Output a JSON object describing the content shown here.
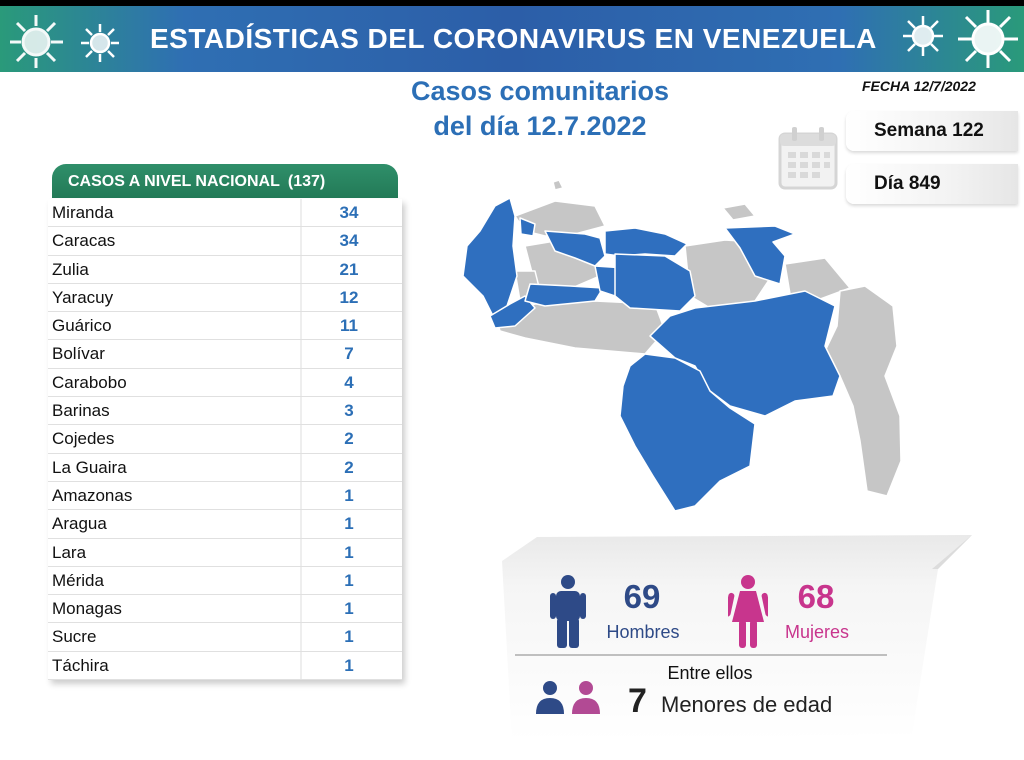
{
  "header": {
    "title": "ESTADÍSTICAS DEL CORONAVIRUS EN VENEZUELA"
  },
  "subtitle": {
    "line1": "Casos comunitarios",
    "line2": "del día 12.7.2022"
  },
  "fecha": "FECHA 12/7/2022",
  "semana": "Semana 122",
  "dia": "Día 849",
  "table": {
    "header_label": "CASOS A NIVEL NACIONAL",
    "total": "(137)",
    "rows": [
      {
        "name": "Miranda",
        "value": "34"
      },
      {
        "name": "Caracas",
        "value": "34"
      },
      {
        "name": "Zulia",
        "value": "21"
      },
      {
        "name": "Yaracuy",
        "value": "12"
      },
      {
        "name": "Guárico",
        "value": "11"
      },
      {
        "name": "Bolívar",
        "value": "7"
      },
      {
        "name": "Carabobo",
        "value": "4"
      },
      {
        "name": "Barinas",
        "value": "3"
      },
      {
        "name": "Cojedes",
        "value": "2"
      },
      {
        "name": "La Guaira",
        "value": "2"
      },
      {
        "name": "Amazonas",
        "value": "1"
      },
      {
        "name": "Aragua",
        "value": "1"
      },
      {
        "name": "Lara",
        "value": "1"
      },
      {
        "name": "Mérida",
        "value": "1"
      },
      {
        "name": "Monagas",
        "value": "1"
      },
      {
        "name": "Sucre",
        "value": "1"
      },
      {
        "name": "Táchira",
        "value": "1"
      }
    ]
  },
  "gender": {
    "men_count": "69",
    "men_label": "Hombres",
    "women_count": "68",
    "women_label": "Mujeres",
    "between_label": "Entre ellos",
    "minors_count": "7",
    "minors_label": "Menores de edad"
  },
  "colors": {
    "title_blue": "#2c6fb6",
    "map_blue": "#2f6fbf",
    "map_grey": "#c6c6c6",
    "header_green": "#237a57",
    "men": "#2e4a87",
    "women": "#c8358d"
  },
  "icons": [
    "virus-icon",
    "calendar-icon",
    "man-icon",
    "woman-icon",
    "children-icon"
  ]
}
